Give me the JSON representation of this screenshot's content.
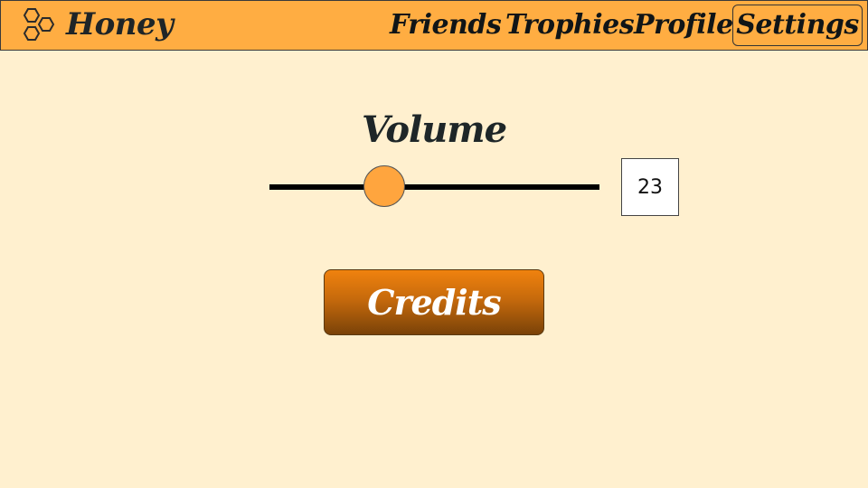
{
  "app": {
    "name": "Honey",
    "logo_icon": "honeycomb-icon"
  },
  "nav": {
    "items": [
      {
        "label": "Friends"
      },
      {
        "label": "Trophies"
      },
      {
        "label": "Profile"
      },
      {
        "label": "Settings",
        "active": true
      }
    ]
  },
  "volume": {
    "label": "Volume",
    "value": "23",
    "slider_fraction": 0.33
  },
  "credits": {
    "label": "Credits"
  },
  "colors": {
    "background": "#fff0cf",
    "navbar": "#ffad42",
    "accent": "#ffa53e",
    "button_top": "#f0820e",
    "button_bottom": "#7a4208"
  }
}
